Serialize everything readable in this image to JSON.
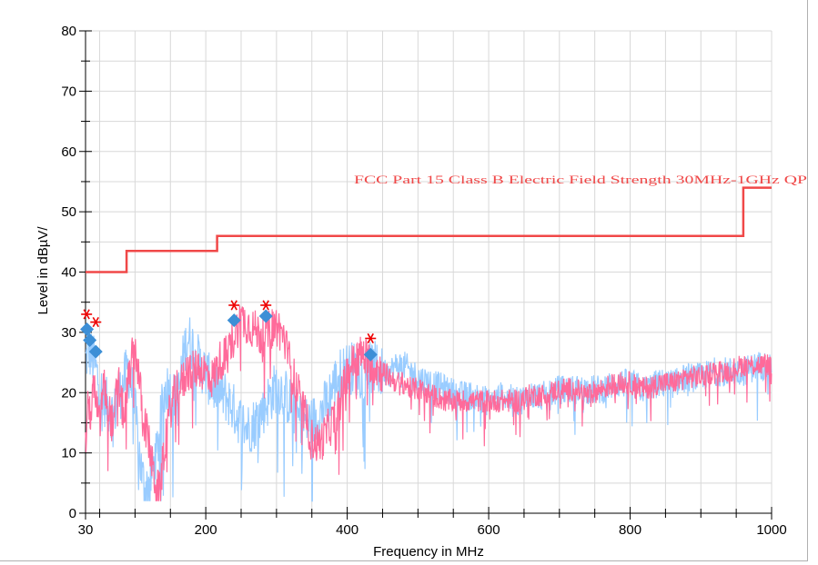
{
  "chart_data": {
    "type": "line",
    "xlabel": "Frequency in MHz",
    "ylabel": "Level in dBµV/",
    "xlim": [
      30,
      1000
    ],
    "ylim": [
      0,
      80
    ],
    "x_ticks": [
      30,
      200,
      400,
      600,
      800,
      1000
    ],
    "y_ticks": [
      0,
      10,
      20,
      30,
      40,
      50,
      60,
      70,
      80
    ],
    "grid": true,
    "colors": {
      "limit": "#f04848",
      "horizontal_scan": "#ff6a9a",
      "vertical_scan": "#99ccff",
      "peak_marker": "#ee0000",
      "qp_marker": "#3d8fd6",
      "grid": "#d8d8d8"
    },
    "series": [
      {
        "name": "FCC Part 15 Class B Electric Field Strength 30MHz-1GHz QP",
        "kind": "limit",
        "x": [
          30,
          88,
          88,
          216,
          216,
          960,
          960,
          1000
        ],
        "y": [
          40,
          40,
          43.5,
          43.5,
          46,
          46,
          54,
          54
        ]
      },
      {
        "kind": "horizontal_scan",
        "x": [
          30,
          34,
          38,
          42,
          46,
          50,
          55,
          60,
          65,
          70,
          75,
          80,
          85,
          90,
          95,
          100,
          105,
          110,
          115,
          120,
          125,
          130,
          135,
          140,
          145,
          150,
          155,
          160,
          165,
          170,
          175,
          180,
          190,
          200,
          210,
          220,
          230,
          240,
          250,
          260,
          270,
          280,
          290,
          300,
          310,
          320,
          330,
          340,
          350,
          360,
          370,
          380,
          390,
          400,
          410,
          420,
          430,
          440,
          450,
          460,
          470,
          480,
          490,
          500,
          520,
          540,
          560,
          580,
          600,
          620,
          640,
          660,
          680,
          700,
          720,
          740,
          760,
          780,
          800,
          820,
          840,
          860,
          880,
          900,
          920,
          940,
          960,
          980,
          1000
        ],
        "y": [
          12,
          19,
          17,
          22,
          18,
          15,
          22,
          20,
          17,
          14,
          24,
          19,
          17,
          22,
          26,
          28,
          24,
          18,
          15,
          12,
          8,
          5,
          4,
          10,
          15,
          18,
          20,
          22,
          22,
          23,
          25,
          24,
          25,
          24,
          23,
          26,
          27,
          30,
          33,
          32,
          31,
          30,
          31,
          32,
          30,
          25,
          21,
          17,
          13,
          12,
          14,
          16,
          19,
          24,
          26,
          27,
          26,
          25,
          24,
          23,
          22,
          22,
          21,
          21,
          20,
          19,
          19,
          19,
          19,
          19,
          19,
          20,
          20,
          21,
          21,
          20,
          21,
          22,
          22,
          21,
          22,
          22,
          23,
          23,
          24,
          24,
          25,
          25,
          25
        ]
      },
      {
        "kind": "vertical_scan",
        "x": [
          30,
          34,
          38,
          42,
          46,
          50,
          55,
          60,
          65,
          70,
          75,
          80,
          85,
          90,
          95,
          100,
          105,
          110,
          115,
          120,
          125,
          130,
          135,
          140,
          145,
          150,
          155,
          160,
          165,
          170,
          175,
          180,
          190,
          200,
          210,
          220,
          230,
          240,
          250,
          260,
          270,
          280,
          290,
          300,
          310,
          320,
          330,
          340,
          350,
          360,
          370,
          380,
          390,
          400,
          410,
          420,
          430,
          440,
          450,
          460,
          470,
          480,
          490,
          500,
          520,
          540,
          560,
          580,
          600,
          620,
          640,
          660,
          680,
          700,
          720,
          740,
          760,
          780,
          800,
          820,
          840,
          860,
          880,
          900,
          920,
          940,
          960,
          980,
          1000
        ],
        "y": [
          26,
          28,
          27,
          26,
          24,
          22,
          20,
          19,
          18,
          17,
          20,
          21,
          23,
          25,
          22,
          18,
          12,
          7,
          5,
          6,
          8,
          10,
          15,
          20,
          22,
          21,
          20,
          19,
          24,
          28,
          30,
          29,
          26,
          24,
          22,
          21,
          20,
          18,
          16,
          15,
          16,
          18,
          20,
          22,
          21,
          19,
          17,
          16,
          16,
          17,
          19,
          22,
          24,
          25,
          25,
          24,
          25,
          25,
          24,
          24,
          25,
          25,
          24,
          23,
          22,
          21,
          20,
          20,
          19,
          20,
          19,
          20,
          20,
          21,
          21,
          21,
          21,
          22,
          22,
          21,
          22,
          22,
          23,
          23,
          24,
          24,
          24,
          25,
          25
        ]
      }
    ],
    "peak_markers": [
      {
        "x": 31.5,
        "y": 33
      },
      {
        "x": 44.5,
        "y": 31.7
      },
      {
        "x": 240,
        "y": 34.5
      },
      {
        "x": 285,
        "y": 34.5
      },
      {
        "x": 433,
        "y": 29
      }
    ],
    "qp_markers": [
      {
        "x": 32,
        "y": 30.5
      },
      {
        "x": 36,
        "y": 28.7
      },
      {
        "x": 44.5,
        "y": 26.8
      },
      {
        "x": 240,
        "y": 32
      },
      {
        "x": 285,
        "y": 32.7
      },
      {
        "x": 433,
        "y": 26.3
      }
    ]
  }
}
